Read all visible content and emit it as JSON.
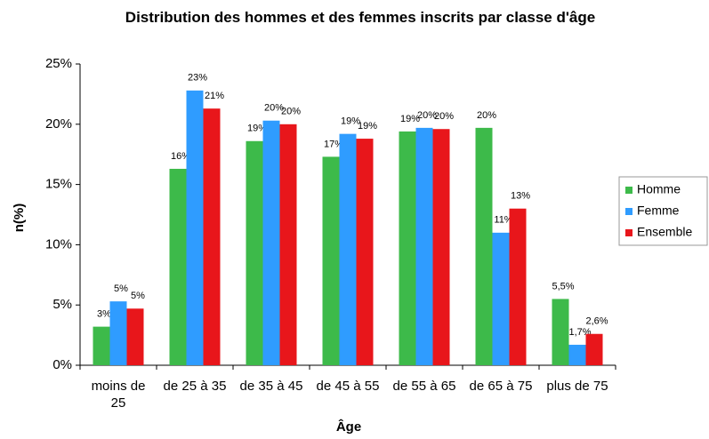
{
  "chart_data": {
    "type": "bar",
    "title": "Distribution des hommes et des femmes inscrits par classe d'âge",
    "xlabel": "Âge",
    "ylabel": "n(%)",
    "categories": [
      "moins de 25",
      "de 25 à 35",
      "de 35 à 45",
      "de 45 à 55",
      "de 55 à 65",
      "de 65 à 75",
      "plus de 75"
    ],
    "series": [
      {
        "name": "Homme",
        "color": "#3dba4a",
        "values": [
          3.2,
          16.3,
          18.6,
          17.3,
          19.4,
          19.7,
          5.5
        ],
        "value_labels": [
          "3%",
          "16%",
          "19%",
          "17%",
          "19%",
          "20%",
          "5,5%"
        ]
      },
      {
        "name": "Femme",
        "color": "#2f9cff",
        "values": [
          5.3,
          22.8,
          20.3,
          19.2,
          19.7,
          11.0,
          1.7
        ],
        "value_labels": [
          "5%",
          "23%",
          "20%",
          "19%",
          "20%",
          "11%",
          "1,7%"
        ]
      },
      {
        "name": "Ensemble",
        "color": "#e8161b",
        "values": [
          4.7,
          21.3,
          20.0,
          18.8,
          19.6,
          13.0,
          2.6
        ],
        "value_labels": [
          "5%",
          "21%",
          "20%",
          "19%",
          "20%",
          "13%",
          "2,6%"
        ]
      }
    ],
    "ylim": [
      0,
      25
    ],
    "yticks": [
      {
        "value": 0,
        "label": "0%"
      },
      {
        "value": 5,
        "label": "5%"
      },
      {
        "value": 10,
        "label": "10%"
      },
      {
        "value": 15,
        "label": "15%"
      },
      {
        "value": 20,
        "label": "20%"
      },
      {
        "value": 25,
        "label": "25%"
      }
    ],
    "legend": "right",
    "grid": false
  }
}
